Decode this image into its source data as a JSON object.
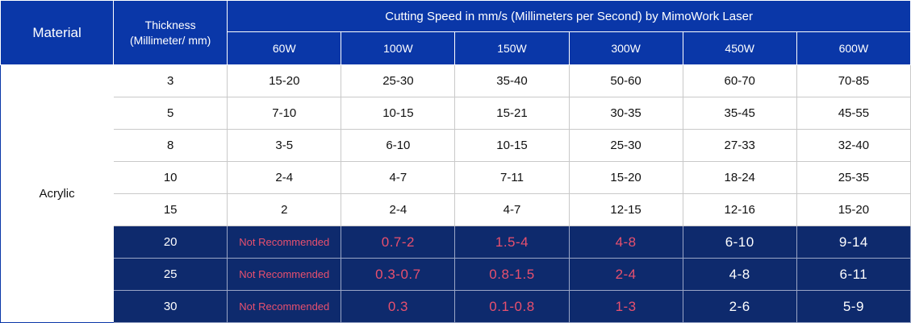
{
  "header": {
    "material_label": "Material",
    "thickness_label": "Thickness\n(Millimeter/ mm)",
    "speed_label": "Cutting Speed in mm/s (Millimeters per Second) by MimoWork Laser",
    "powers": [
      "60W",
      "100W",
      "150W",
      "300W",
      "450W",
      "600W"
    ]
  },
  "material": "Acrylic",
  "rows": [
    {
      "thickness": "3",
      "values": [
        "15-20",
        "25-30",
        "35-40",
        "50-60",
        "60-70",
        "70-85"
      ]
    },
    {
      "thickness": "5",
      "values": [
        "7-10",
        "10-15",
        "15-21",
        "30-35",
        "35-45",
        "45-55"
      ]
    },
    {
      "thickness": "8",
      "values": [
        "3-5",
        "6-10",
        "10-15",
        "25-30",
        "27-33",
        "32-40"
      ]
    },
    {
      "thickness": "10",
      "values": [
        "2-4",
        "4-7",
        "7-11",
        "15-20",
        "18-24",
        "25-35"
      ]
    },
    {
      "thickness": "15",
      "values": [
        "2",
        "2-4",
        "4-7",
        "12-15",
        "12-16",
        "15-20"
      ]
    },
    {
      "thickness": "20",
      "values": [
        "Not Recommended",
        "0.7-2",
        "1.5-4",
        "4-8",
        "6-10",
        "9-14"
      ]
    },
    {
      "thickness": "25",
      "values": [
        "Not Recommended",
        "0.3-0.7",
        "0.8-1.5",
        "2-4",
        "4-8",
        "6-11"
      ]
    },
    {
      "thickness": "30",
      "values": [
        "Not Recommended",
        "0.3",
        "0.1-0.8",
        "1-3",
        "2-6",
        "5-9"
      ]
    }
  ],
  "colors": {
    "header_blue": "#0a37a8",
    "dark_row_navy": "#0e2a6d",
    "warning_red": "#e8506e"
  }
}
